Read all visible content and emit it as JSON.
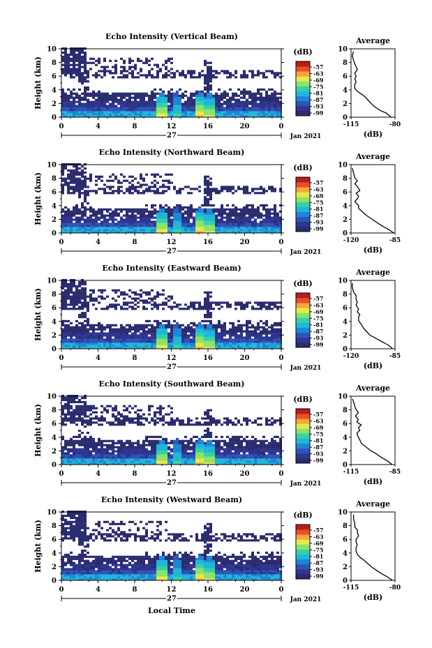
{
  "chart_data": {
    "type": "heatmap",
    "x_axis": {
      "ticks": [
        "0",
        "4",
        "8",
        "12",
        "16",
        "20",
        "0"
      ],
      "date_label": "27",
      "month_label": "Jan 2021",
      "xlabel": "Local Time"
    },
    "y_axis": {
      "label": "Height (km)",
      "ticks": [
        "0",
        "2",
        "4",
        "6",
        "8",
        "10"
      ],
      "ylim": [
        0,
        10
      ]
    },
    "colorbar": {
      "unit": "(dB)",
      "ticks": [
        "-57",
        "-63",
        "-69",
        "-75",
        "-81",
        "-87",
        "-93",
        "-99"
      ]
    },
    "average_title": "Average",
    "average_unit": "(dB)",
    "panels": [
      {
        "title": "Echo Intensity (Vertical Beam)",
        "avg_ticks": [
          "-115",
          "-80"
        ],
        "avg_range": [
          -115,
          -80
        ],
        "avg_profile": [
          [
            -83,
            0
          ],
          [
            -87,
            0.6
          ],
          [
            -92,
            1.0
          ],
          [
            -96,
            1.5
          ],
          [
            -99,
            2.0
          ],
          [
            -101,
            2.4
          ],
          [
            -104,
            3.0
          ],
          [
            -107,
            3.4
          ],
          [
            -110,
            3.8
          ],
          [
            -112,
            4.2
          ],
          [
            -112,
            4.8
          ],
          [
            -111,
            5.2
          ],
          [
            -112,
            5.6
          ],
          [
            -111,
            6.0
          ],
          [
            -112,
            6.4
          ],
          [
            -110,
            7.0
          ],
          [
            -111,
            7.4
          ],
          [
            -112,
            7.8
          ],
          [
            -113,
            8.3
          ],
          [
            -114,
            9.0
          ],
          [
            -113,
            9.6
          ]
        ]
      },
      {
        "title": "Echo Intensity (Northward Beam)",
        "avg_ticks": [
          "-120",
          "-85"
        ],
        "avg_range": [
          -120,
          -85
        ],
        "avg_profile": [
          [
            -86,
            0
          ],
          [
            -90,
            0.5
          ],
          [
            -95,
            1.0
          ],
          [
            -100,
            1.6
          ],
          [
            -104,
            2.1
          ],
          [
            -108,
            2.6
          ],
          [
            -111,
            3.1
          ],
          [
            -114,
            3.6
          ],
          [
            -114,
            4.0
          ],
          [
            -117,
            4.6
          ],
          [
            -115,
            5.0
          ],
          [
            -114,
            5.4
          ],
          [
            -116,
            5.8
          ],
          [
            -113,
            6.2
          ],
          [
            -115,
            6.8
          ],
          [
            -117,
            7.2
          ],
          [
            -115,
            7.6
          ],
          [
            -117,
            8.1
          ],
          [
            -118,
            8.8
          ],
          [
            -119,
            9.5
          ]
        ]
      },
      {
        "title": "Echo Intensity (Eastward Beam)",
        "avg_ticks": [
          "-120",
          "-85"
        ],
        "avg_range": [
          -120,
          -85
        ],
        "avg_profile": [
          [
            -87,
            0
          ],
          [
            -90,
            0.5
          ],
          [
            -95,
            1.0
          ],
          [
            -100,
            1.5
          ],
          [
            -105,
            2.0
          ],
          [
            -108,
            2.6
          ],
          [
            -110,
            3.0
          ],
          [
            -112,
            3.6
          ],
          [
            -114,
            4.1
          ],
          [
            -114,
            4.6
          ],
          [
            -113,
            5.0
          ],
          [
            -115,
            5.4
          ],
          [
            -114,
            5.8
          ],
          [
            -116,
            6.4
          ],
          [
            -115,
            6.8
          ],
          [
            -116,
            7.2
          ],
          [
            -116,
            7.8
          ],
          [
            -118,
            8.3
          ],
          [
            -119,
            9.0
          ],
          [
            -119,
            9.6
          ]
        ]
      },
      {
        "title": "Echo Intensity (Southward Beam)",
        "avg_ticks": [
          "-115",
          "-85"
        ],
        "avg_range": [
          -115,
          -85
        ],
        "avg_profile": [
          [
            -87,
            0
          ],
          [
            -90,
            0.5
          ],
          [
            -94,
            1.0
          ],
          [
            -98,
            1.6
          ],
          [
            -102,
            2.1
          ],
          [
            -105,
            2.6
          ],
          [
            -108,
            3.1
          ],
          [
            -109,
            3.6
          ],
          [
            -110,
            4.0
          ],
          [
            -111,
            4.6
          ],
          [
            -109,
            5.0
          ],
          [
            -110,
            5.4
          ],
          [
            -108,
            5.8
          ],
          [
            -111,
            6.2
          ],
          [
            -110,
            6.6
          ],
          [
            -112,
            7.1
          ],
          [
            -110,
            7.6
          ],
          [
            -112,
            8.2
          ],
          [
            -113,
            9.0
          ],
          [
            -114,
            9.6
          ]
        ]
      },
      {
        "title": "Echo Intensity (Westward Beam)",
        "avg_ticks": [
          "-115",
          "-80"
        ],
        "avg_range": [
          -115,
          -80
        ],
        "avg_profile": [
          [
            -82,
            0
          ],
          [
            -86,
            0.5
          ],
          [
            -91,
            1.0
          ],
          [
            -95,
            1.5
          ],
          [
            -99,
            2.0
          ],
          [
            -102,
            2.5
          ],
          [
            -105,
            3.0
          ],
          [
            -108,
            3.4
          ],
          [
            -110,
            3.8
          ],
          [
            -111,
            4.3
          ],
          [
            -111,
            4.8
          ],
          [
            -110,
            5.2
          ],
          [
            -111,
            5.6
          ],
          [
            -111,
            6.0
          ],
          [
            -109,
            6.5
          ],
          [
            -110,
            7.0
          ],
          [
            -110,
            7.4
          ],
          [
            -112,
            7.8
          ],
          [
            -112,
            8.3
          ],
          [
            -113,
            9.0
          ],
          [
            -113,
            9.6
          ]
        ]
      }
    ]
  }
}
